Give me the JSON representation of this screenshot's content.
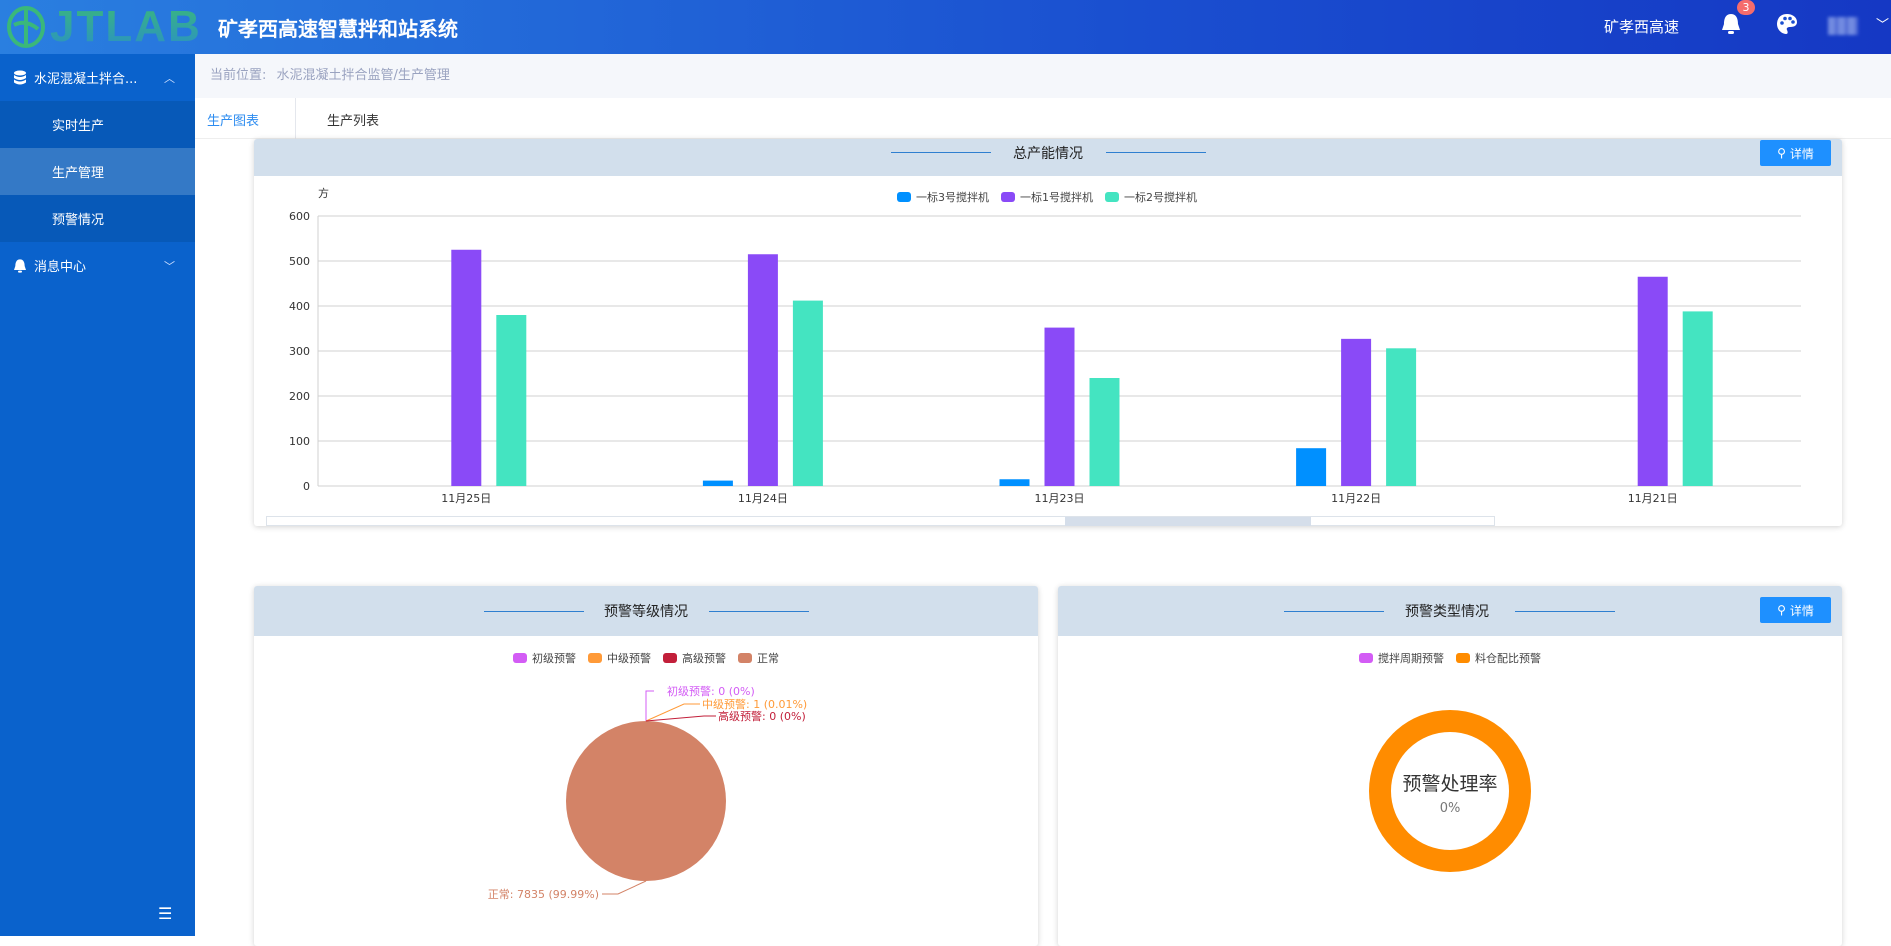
{
  "header": {
    "logo_text": "JTLAB",
    "title": "矿孝西高速智慧拌和站系统",
    "org": "矿孝西高速",
    "notification_count": "3",
    "user_menu_icon": "chevron-down-icon"
  },
  "sidebar": {
    "items": [
      {
        "label": "水泥混凝土拌合...",
        "icon": "database-icon",
        "expanded": true
      },
      {
        "label": "实时生产"
      },
      {
        "label": "生产管理",
        "active": true
      },
      {
        "label": "预警情况"
      },
      {
        "label": "消息中心",
        "icon": "bell-icon",
        "expanded": false
      }
    ]
  },
  "breadcrumb": {
    "prefix": "当前位置:",
    "path": "水泥混凝土拌合监管/生产管理"
  },
  "tabs": [
    {
      "label": "生产图表",
      "active": true
    },
    {
      "label": "生产列表"
    }
  ],
  "colors": {
    "accent": "#1e90ff",
    "header_band": "#d2dfec",
    "sidebar": "#0a62cc"
  },
  "capacity_card": {
    "title": "总产能情况",
    "detail_label": "详情"
  },
  "warning_level_card": {
    "title": "预警等级情况"
  },
  "warning_type_card": {
    "title": "预警类型情况",
    "detail_label": "详情",
    "center_title": "预警处理率",
    "center_value": "0%"
  },
  "chart_data": [
    {
      "type": "bar",
      "ylabel": "方",
      "ylim": [
        0,
        600
      ],
      "yticks": [
        "0",
        "100",
        "200",
        "300",
        "400",
        "500",
        "600"
      ],
      "grid": true,
      "legend": "top-center",
      "categories": [
        "11月25日",
        "11月24日",
        "11月23日",
        "11月22日",
        "11月21日"
      ],
      "series": [
        {
          "name": "一标3号搅拌机",
          "color": "#0090ff",
          "values": [
            0,
            12,
            15,
            84,
            0
          ]
        },
        {
          "name": "一标1号搅拌机",
          "color": "#8a4af7",
          "values": [
            525,
            515,
            352,
            327,
            465
          ]
        },
        {
          "name": "一标2号搅拌机",
          "color": "#44e4c1",
          "values": [
            380,
            412,
            240,
            306,
            388
          ]
        }
      ]
    },
    {
      "type": "pie",
      "legend": "top-center",
      "slices": [
        {
          "name": "初级预警",
          "value": 0,
          "percent": "0%",
          "color": "#d35cf5",
          "label": "初级预警: 0 (0%)"
        },
        {
          "name": "中级预警",
          "value": 1,
          "percent": "0.01%",
          "color": "#ff9a38",
          "label": "中级预警: 1 (0.01%)"
        },
        {
          "name": "高级预警",
          "value": 0,
          "percent": "0%",
          "color": "#c21f3a",
          "label": "高级预警: 0 (0%)"
        },
        {
          "name": "正常",
          "value": 7835,
          "percent": "99.99%",
          "color": "#d38367",
          "label": "正常: 7835 (99.99%)"
        }
      ]
    },
    {
      "type": "pie",
      "legend": "top-center",
      "slices": [
        {
          "name": "搅拌周期预警",
          "color": "#d35cf5"
        },
        {
          "name": "料仓配比预警",
          "color": "#ff8c00"
        }
      ]
    }
  ]
}
